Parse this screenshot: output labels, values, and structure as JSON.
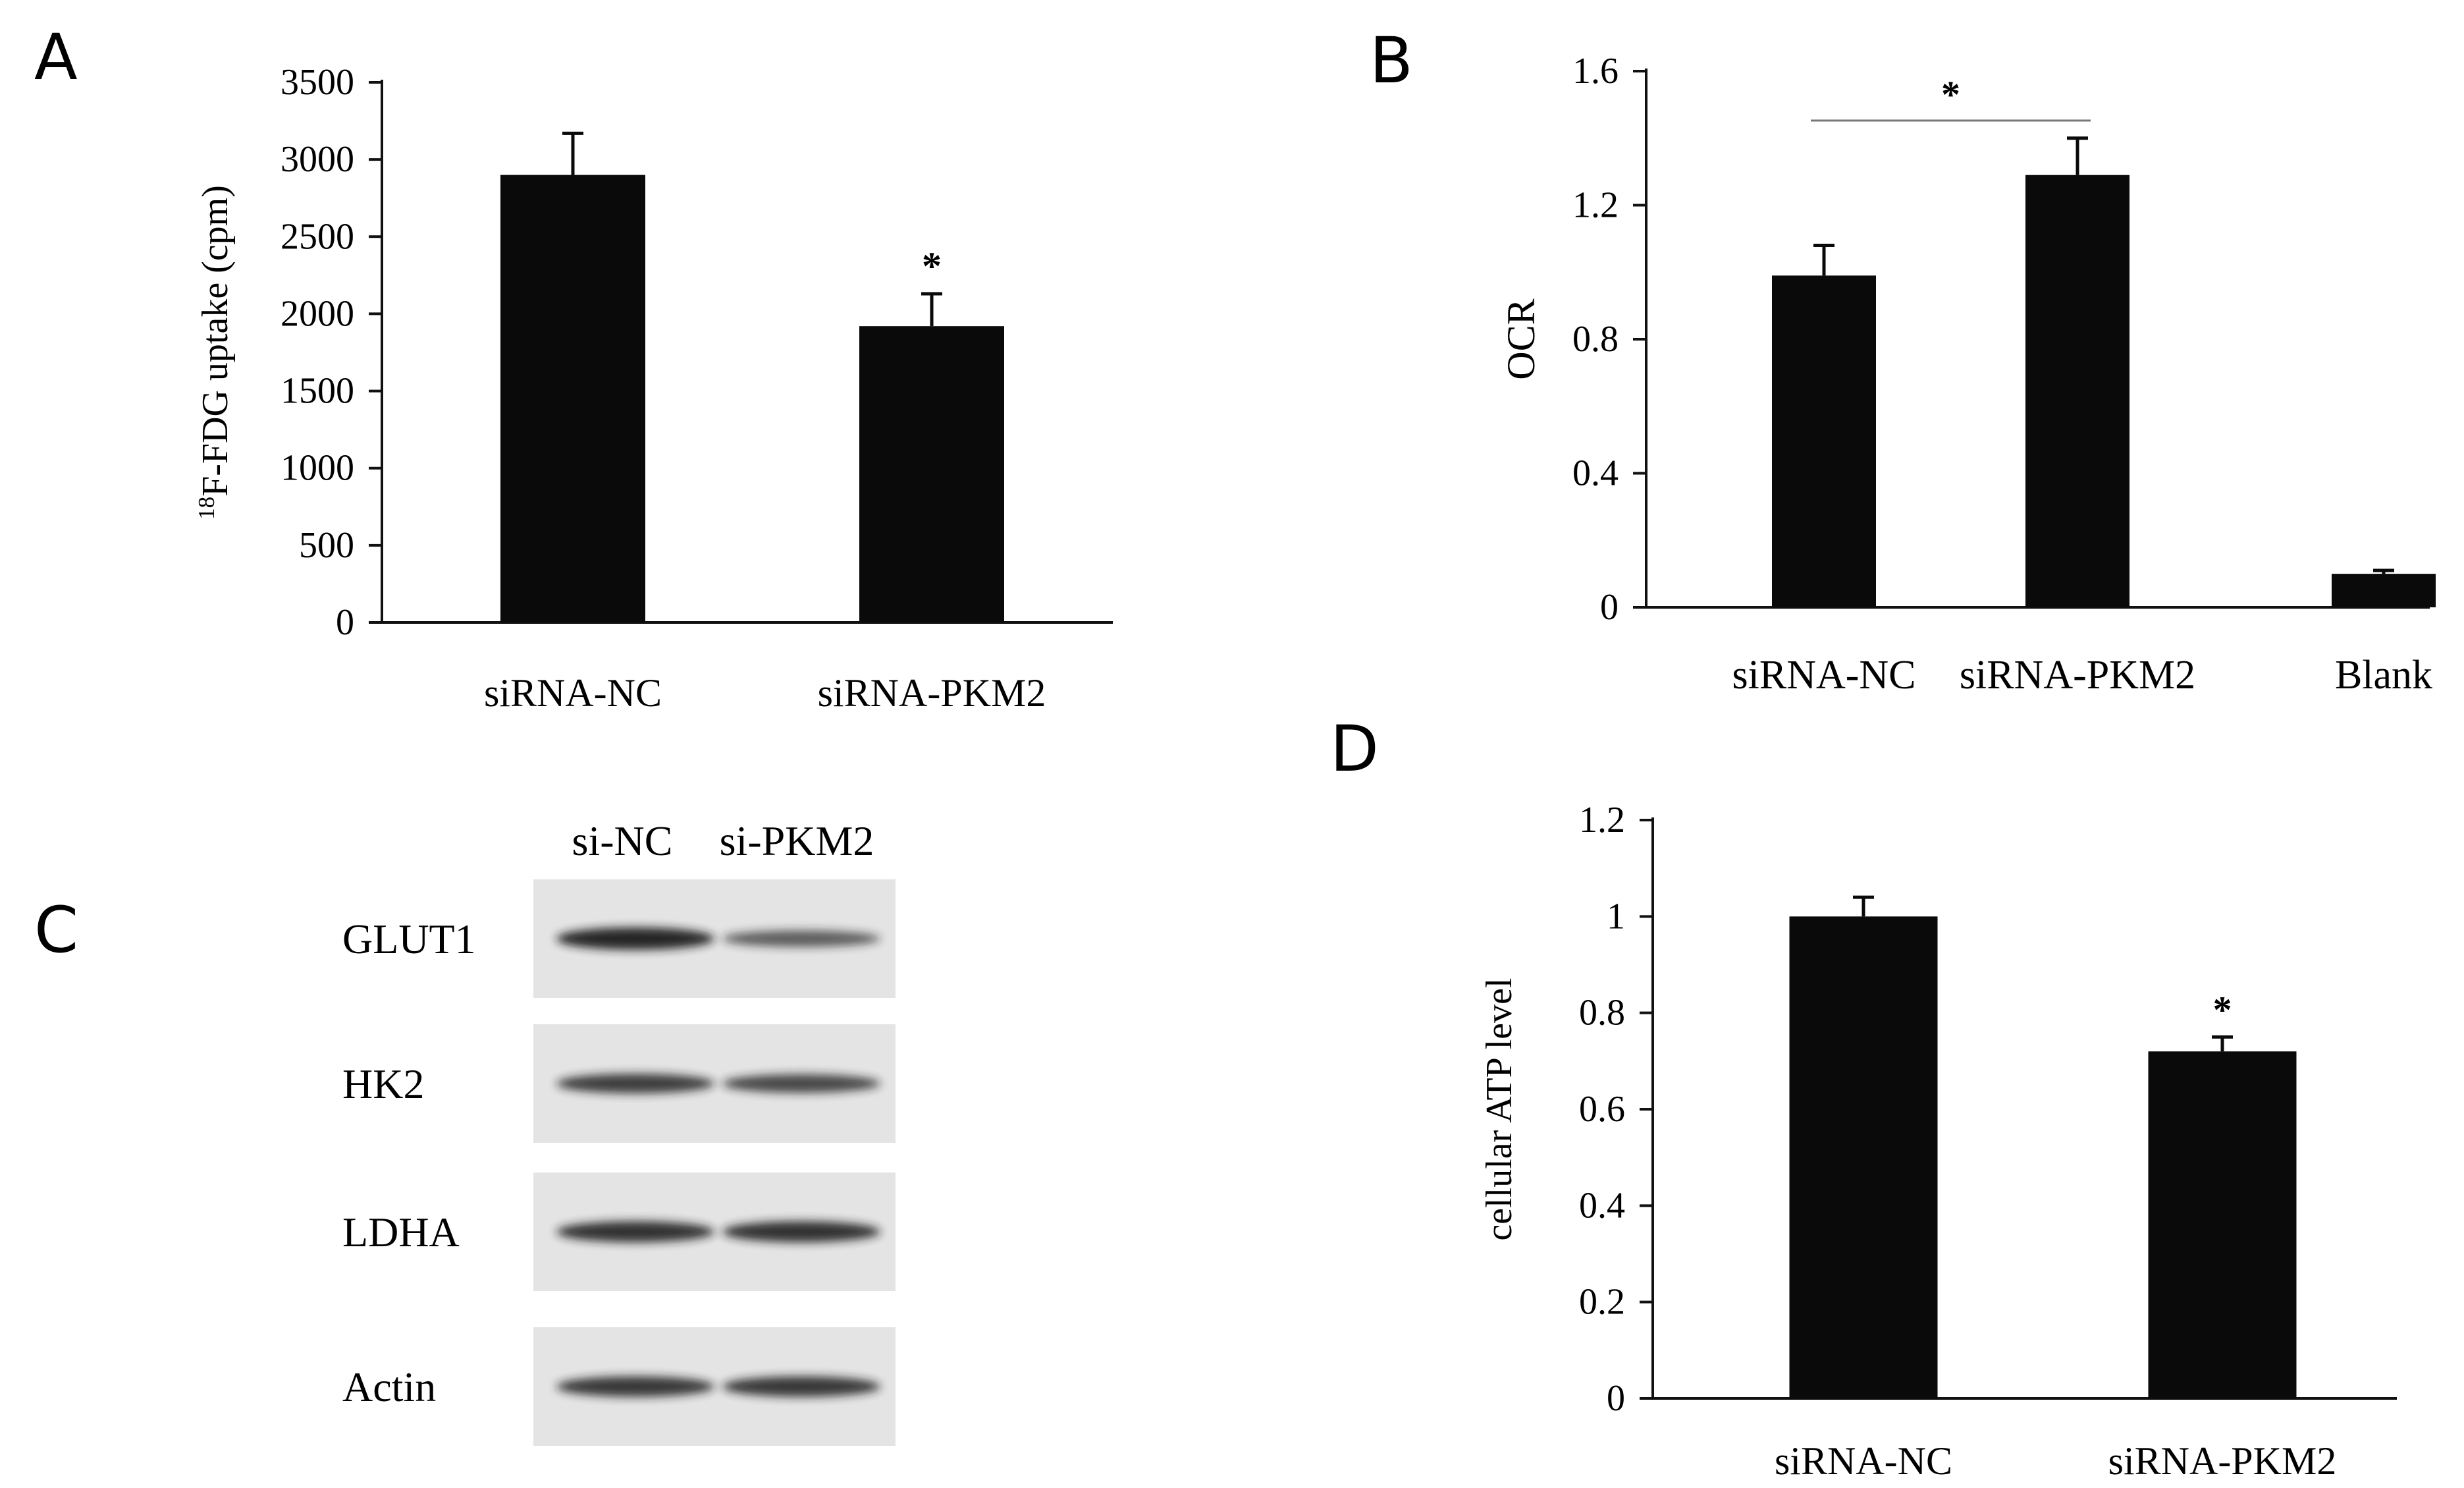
{
  "panels": {
    "A": "A",
    "B": "B",
    "C": "C",
    "D": "D"
  },
  "colors": {
    "bar": "#0a0a0a",
    "axis": "#111111",
    "blot_background": "#e4e4e4",
    "band": "#1c1c1c"
  },
  "chart_data": [
    {
      "panel": "A",
      "type": "bar",
      "categories": [
        "siRNA-NC",
        "siRNA-PKM2"
      ],
      "values": [
        2900,
        1920
      ],
      "errors": [
        270,
        210
      ],
      "significance": [
        "",
        "*"
      ],
      "ylabel_sup": "18",
      "ylabel": "F-FDG uptake (cpm)",
      "ylim": [
        0,
        3500
      ],
      "yticks": [
        0,
        500,
        1000,
        1500,
        2000,
        2500,
        3000,
        3500
      ],
      "grid": false
    },
    {
      "panel": "B",
      "type": "bar",
      "categories": [
        "siRNA-NC",
        "siRNA-PKM2",
        "Blank"
      ],
      "values": [
        0.99,
        1.29,
        0.1
      ],
      "errors": [
        0.09,
        0.11,
        0.01
      ],
      "comparison": {
        "between": [
          0,
          1
        ],
        "label": "*"
      },
      "ylabel": "OCR",
      "ylim": [
        0,
        1.6
      ],
      "yticks": [
        "0",
        "0.4",
        "0.8",
        "1.2",
        "1.6"
      ],
      "grid": false
    },
    {
      "panel": "D",
      "type": "bar",
      "categories": [
        "siRNA-NC",
        "siRNA-PKM2"
      ],
      "values": [
        1.0,
        0.72
      ],
      "errors": [
        0.04,
        0.03
      ],
      "significance": [
        "",
        "*"
      ],
      "ylabel": "cellular ATP level",
      "ylim": [
        0,
        1.2
      ],
      "yticks": [
        "0",
        "0.2",
        "0.4",
        "0.6",
        "0.8",
        "1",
        "1.2"
      ],
      "grid": false
    }
  ],
  "western_blot": {
    "columns": [
      "si-NC",
      "si-PKM2"
    ],
    "rows": [
      {
        "label": "GLUT1",
        "intensity": [
          1.0,
          0.55
        ]
      },
      {
        "label": "HK2",
        "intensity": [
          0.8,
          0.72
        ]
      },
      {
        "label": "LDHA",
        "intensity": [
          0.9,
          0.9
        ]
      },
      {
        "label": "Actin",
        "intensity": [
          0.85,
          0.85
        ]
      }
    ]
  }
}
